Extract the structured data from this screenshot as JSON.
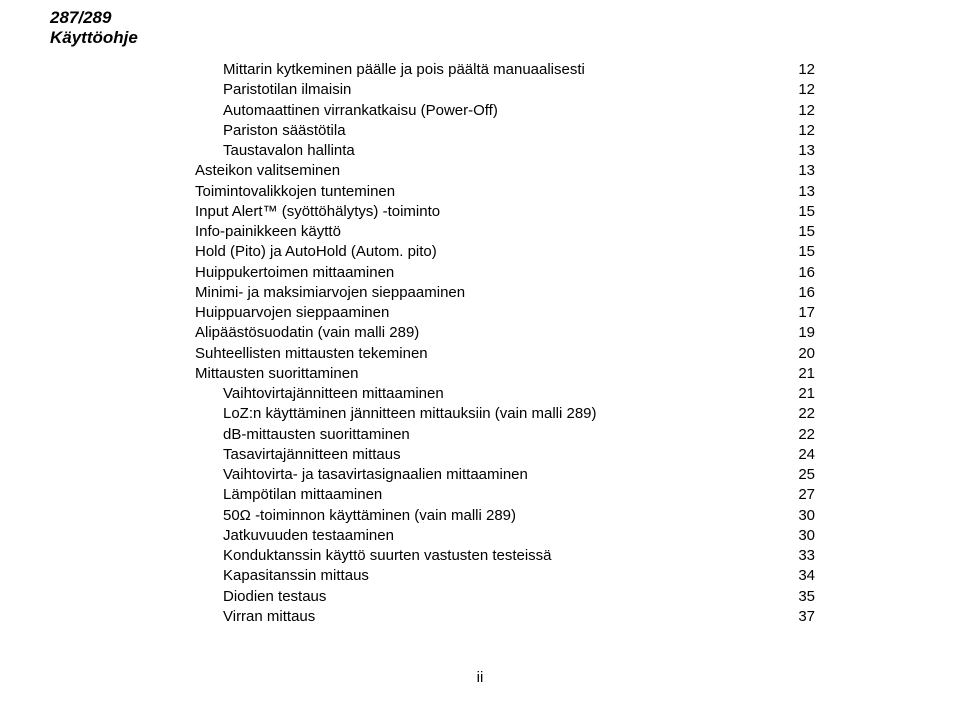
{
  "colors": {
    "text": "#000000",
    "background": "#ffffff"
  },
  "typography": {
    "body_font_size_pt": 11,
    "header_font_size_pt": 13,
    "header_weight": "bold",
    "header_style": "italic"
  },
  "header": {
    "line1": "287/289",
    "line2": "Käyttöohje"
  },
  "toc": {
    "items": [
      {
        "level": 1,
        "title": "Mittarin kytkeminen päälle ja pois päältä manuaalisesti",
        "page": "12"
      },
      {
        "level": 1,
        "title": "Paristotilan ilmaisin",
        "page": "12"
      },
      {
        "level": 1,
        "title": "Automaattinen virrankatkaisu (Power-Off)",
        "page": "12"
      },
      {
        "level": 1,
        "title": "Pariston säästötila",
        "page": "12"
      },
      {
        "level": 1,
        "title": "Taustavalon hallinta",
        "page": "13"
      },
      {
        "level": 0,
        "title": "Asteikon valitseminen",
        "page": "13"
      },
      {
        "level": 0,
        "title": "Toimintovalikkojen tunteminen",
        "page": "13"
      },
      {
        "level": 0,
        "title": "Input Alert™ (syöttöhälytys) -toiminto",
        "page": "15"
      },
      {
        "level": 0,
        "title": "Info-painikkeen käyttö",
        "page": "15"
      },
      {
        "level": 0,
        "title": "Hold (Pito) ja AutoHold (Autom. pito)",
        "page": "15"
      },
      {
        "level": 0,
        "title": "Huippukertoimen mittaaminen",
        "page": "16"
      },
      {
        "level": 0,
        "title": "Minimi- ja maksimiarvojen sieppaaminen",
        "page": "16"
      },
      {
        "level": 0,
        "title": "Huippuarvojen sieppaaminen",
        "page": "17"
      },
      {
        "level": 0,
        "title": "Alipäästösuodatin (vain malli 289)",
        "page": "19"
      },
      {
        "level": 0,
        "title": "Suhteellisten mittausten tekeminen",
        "page": "20"
      },
      {
        "level": 0,
        "title": "Mittausten suorittaminen",
        "page": "21"
      },
      {
        "level": 1,
        "title": "Vaihtovirtajännitteen mittaaminen",
        "page": "21"
      },
      {
        "level": 1,
        "title": "LoZ:n käyttäminen jännitteen mittauksiin (vain malli 289)",
        "page": "22"
      },
      {
        "level": 1,
        "title": "dB-mittausten suorittaminen",
        "page": "22"
      },
      {
        "level": 1,
        "title": "Tasavirtajännitteen mittaus",
        "page": "24"
      },
      {
        "level": 1,
        "title": "Vaihtovirta- ja tasavirtasignaalien mittaaminen",
        "page": "25"
      },
      {
        "level": 1,
        "title": "Lämpötilan mittaaminen",
        "page": "27"
      },
      {
        "level": 1,
        "title": "50Ω -toiminnon käyttäminen (vain malli 289)",
        "page": "30"
      },
      {
        "level": 1,
        "title": "Jatkuvuuden testaaminen",
        "page": "30"
      },
      {
        "level": 1,
        "title": "Konduktanssin käyttö suurten vastusten testeissä",
        "page": "33"
      },
      {
        "level": 1,
        "title": "Kapasitanssin mittaus",
        "page": "34"
      },
      {
        "level": 1,
        "title": "Diodien testaus",
        "page": "35"
      },
      {
        "level": 1,
        "title": "Virran mittaus",
        "page": "37"
      }
    ]
  },
  "footer": {
    "page_label": "ii"
  }
}
